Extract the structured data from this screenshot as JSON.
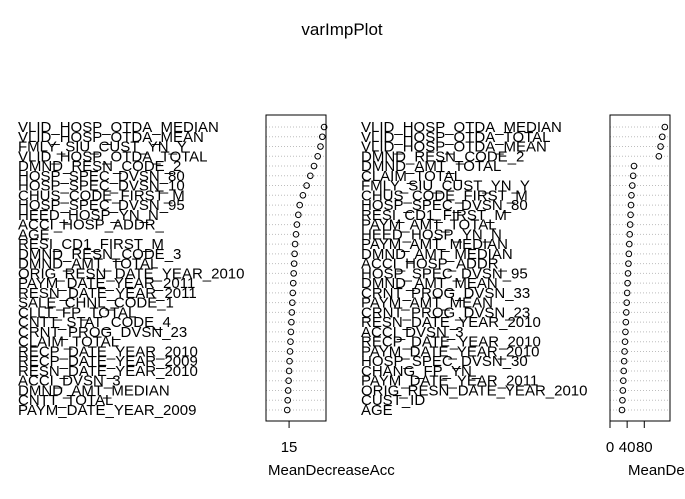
{
  "title": "varImpPlot",
  "chart_data": [
    {
      "type": "dotchart",
      "title": "",
      "xlabel": "MeanDecreaseAcc",
      "ylabel": "",
      "xlim": [
        10,
        23
      ],
      "xticks": [
        15
      ],
      "grid": true,
      "categories": [
        "VLID_HOSP_OTDA_MEDIAN",
        "VLID_HOSP_OTDA_MEAN",
        "FMLY_SIU_CUST_YN_Y",
        "VLID_HOSP_OTDA_TOTAL",
        "DMND_RESN_CODE_2",
        "HOSP_SPEC_DVSN_80",
        "HOSP_SPEC_DVSN_10",
        "CHUS_CODE_FIRST_M",
        "HOSP_SPEC_DVSN_95",
        "HEED_HOSP_YN_N",
        "ACCI_HOSP_ADDR_",
        "AGE",
        "RESI_CD1_FIRST_M",
        "DMND_RESN_CODE_3",
        "DMND_AMT_TOTAL",
        "ORIG_RESN_DATE_YEAR_2010",
        "PAYM_DATE_YEAR_2011",
        "RESN_DATE_YEAR_2011",
        "SALE_CHNL_CODE_1",
        "CLLT_FP_TOTAL",
        "CNTT_STAT_CODE_4",
        "CRNT_PROG_DVSN_23",
        "CLAIM_TOTAL",
        "RECP_DATE_YEAR_2010",
        "RECP_DATE_YEAR_2009",
        "RESN_DATE_YEAR_2010",
        "ACCI_DVSN_3",
        "DMND_AMT_MEDIAN",
        "CNTT_TOTAL",
        "PAYM_DATE_YEAR_2009"
      ],
      "values": [
        22.6,
        22.2,
        21.8,
        21.2,
        20.4,
        19.6,
        18.8,
        18.0,
        17.3,
        17.0,
        16.7,
        16.5,
        16.3,
        16.2,
        16.1,
        16.0,
        15.9,
        15.8,
        15.7,
        15.6,
        15.5,
        15.4,
        15.3,
        15.2,
        15.1,
        15.0,
        14.9,
        14.8,
        14.7,
        14.6
      ]
    },
    {
      "type": "dotchart",
      "title": "",
      "xlabel": "MeanDecreaseG",
      "ylabel": "",
      "xlim": [
        0,
        140
      ],
      "xticks": [
        0,
        40,
        80
      ],
      "xticklabels": [
        "0",
        "40",
        "80"
      ],
      "grid": true,
      "categories": [
        "VLID_HOSP_OTDA_MEDIAN",
        "VLID_HOSP_OTDA_TOTAL",
        "VLID_HOSP_OTDA_MEAN",
        "DMND_RESN_CODE_2",
        "DMND_AMT_TOTAL",
        "CLAIM_TOTAL",
        "FMLY_SIU_CUST_YN_Y",
        "CHUS_CODE_FIRST_M",
        "HOSP_SPEC_DVSN_80",
        "RESI_CD1_FIRST_M",
        "PAYM_AMT_TOTAL",
        "HEED_HOSP_YN_N",
        "PAYM_AMT_MEDIAN",
        "DMND_AMT_MEDIAN",
        "ACCI_HOSP_ADDR_",
        "HOSP_SPEC_DVSN_95",
        "DMND_AMT_MEAN",
        "CRNT_PROG_DVSN_33",
        "PAYM_AMT_MEAN",
        "CRNT_PROG_DVSN_23",
        "RESN_DATE_YEAR_2010",
        "ACCI_DVSN_3",
        "RECP_DATE_YEAR_2010",
        "PAYM_DATE_YEAR_2010",
        "HOSP_SPEC_DVSN_30",
        "CHANG_FP_YN_",
        "PAYM_DATE_YEAR_2011",
        "ORIG_RESN_DATE_YEAR_2010",
        "CUST_ID",
        "AGE"
      ],
      "values": [
        128,
        122,
        118,
        114,
        56,
        54,
        52,
        50,
        49,
        48,
        47,
        46,
        45,
        44,
        43,
        42,
        41,
        40,
        39,
        38,
        37,
        36,
        35,
        34,
        33,
        32,
        31,
        30,
        29,
        28
      ]
    }
  ]
}
